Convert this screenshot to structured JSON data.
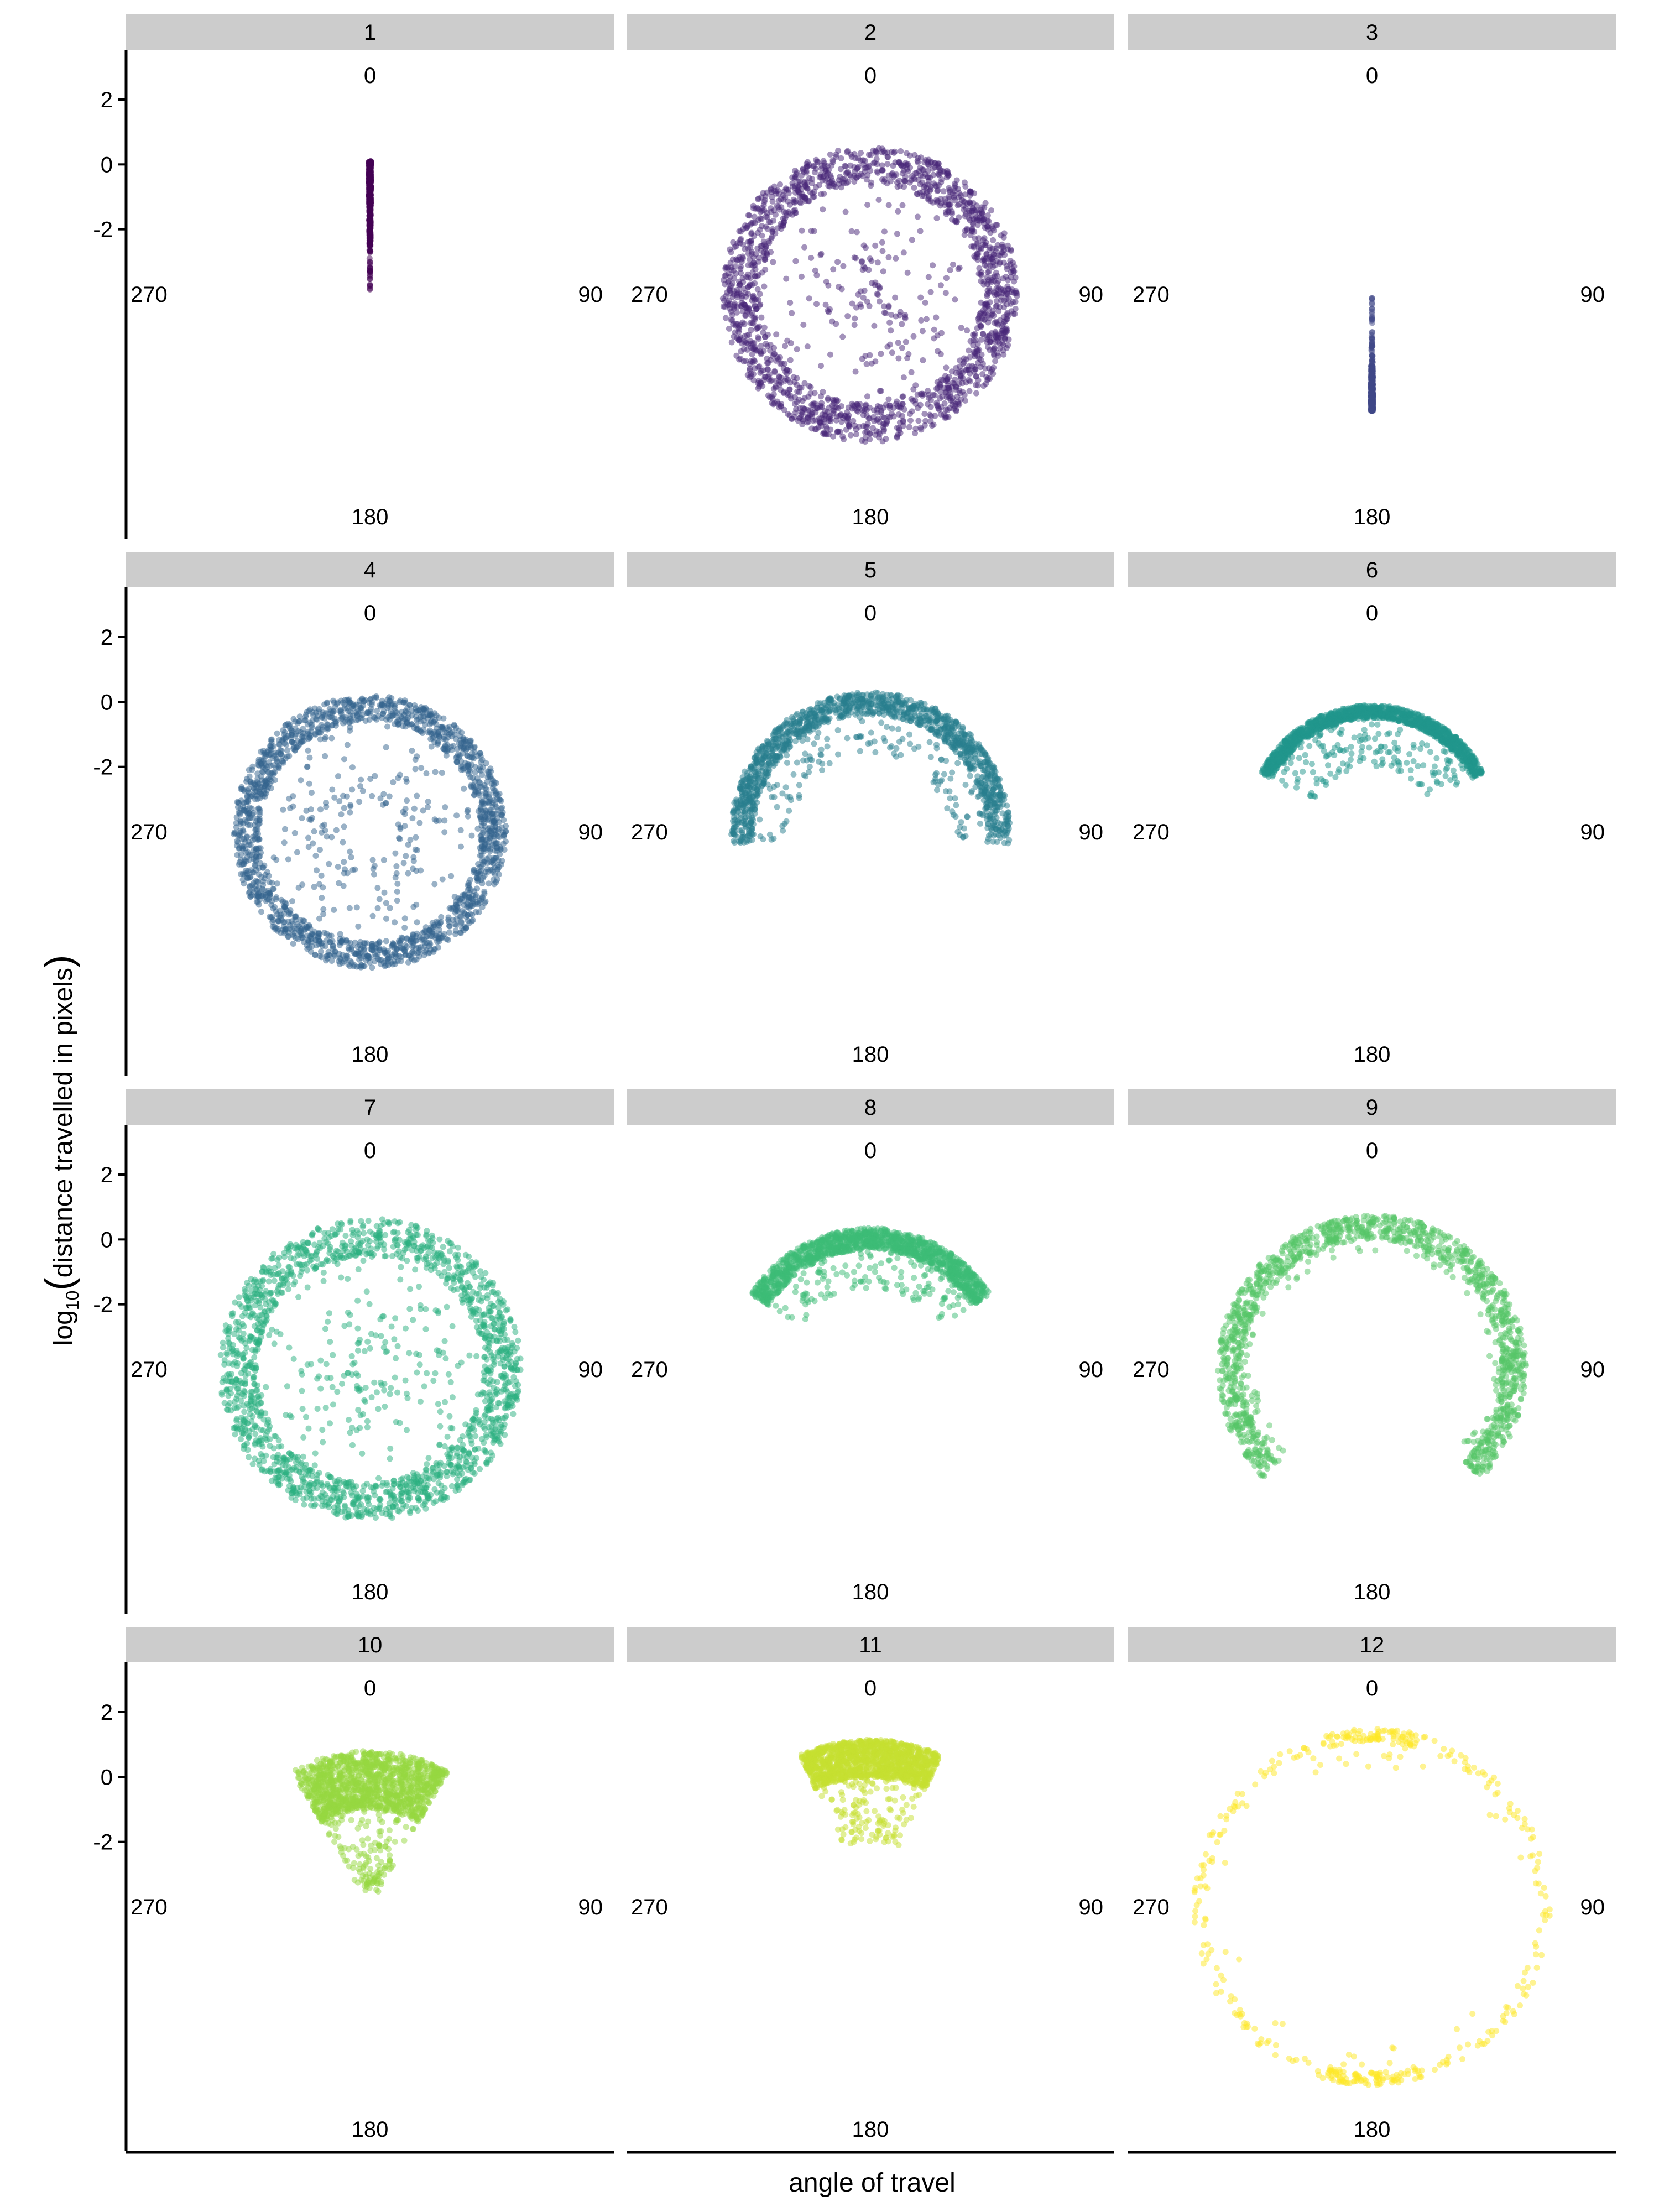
{
  "chart_data": {
    "type": "scatter",
    "coord": "polar",
    "xlabel": "angle of travel",
    "ylabel": {
      "prefix": "log",
      "subscript": "10",
      "open": "(",
      "inner": "distance travelled in pixels",
      "close": ")"
    },
    "angle_labels": [
      "0",
      "90",
      "180",
      "270"
    ],
    "y_ticks": [
      2,
      0,
      -2
    ],
    "r_range": [
      -4,
      3.5
    ],
    "grid": false,
    "legend": "none",
    "panels": [
      {
        "label": "1",
        "color": "#440154",
        "shape": "spoke",
        "center_angle": 0,
        "r_min": -3.9,
        "r_max": 0.1,
        "r_core_min": -2.5
      },
      {
        "label": "2",
        "color": "#482677",
        "shape": "ring",
        "r_min": -3.8,
        "r_max": 0.55,
        "r_core_min": -0.6
      },
      {
        "label": "3",
        "color": "#404788",
        "shape": "spoke",
        "center_angle": 180,
        "r_min": -3.9,
        "r_max": -0.4,
        "r_core_min": -1.8
      },
      {
        "label": "4",
        "color": "#33638D",
        "shape": "ring",
        "r_min": -3.2,
        "r_max": 0.2,
        "r_core_min": -0.6
      },
      {
        "label": "5",
        "color": "#287D8E",
        "shape": "arc",
        "center_angle": 0,
        "half_spread": 95,
        "r_min": -1.6,
        "r_max": 0.3,
        "r_core_min": -0.4
      },
      {
        "label": "6",
        "color": "#1F968B",
        "shape": "arc",
        "center_angle": 0,
        "half_spread": 62,
        "r_min": -2.0,
        "r_max": -0.1,
        "r_core_min": -0.5
      },
      {
        "label": "7",
        "color": "#29AF7F",
        "shape": "ring",
        "r_min": -3.6,
        "r_max": 0.65,
        "r_core_min": -0.5
      },
      {
        "label": "8",
        "color": "#3CBB75",
        "shape": "arc",
        "center_angle": 0,
        "half_spread": 58,
        "r_min": -1.5,
        "r_max": 0.35,
        "r_core_min": -0.3
      },
      {
        "label": "9",
        "color": "#55C667",
        "shape": "arc",
        "center_angle": 0,
        "half_spread": 135,
        "r_min": -0.4,
        "r_max": 0.75,
        "r_core_min": 0.0
      },
      {
        "label": "10",
        "color": "#95D840",
        "shape": "arc",
        "center_angle": 0,
        "half_spread": 30,
        "r_min": -3.5,
        "r_max": 0.8,
        "r_core_min": -1.0
      },
      {
        "label": "11",
        "color": "#C5DF30",
        "shape": "arc",
        "center_angle": 0,
        "half_spread": 25,
        "r_min": -2.0,
        "r_max": 1.15,
        "r_core_min": 0.0
      },
      {
        "label": "12",
        "color": "#FDE725",
        "shape": "sparse-ring",
        "r_min": 0.9,
        "r_max": 1.5,
        "r_core_min": 1.1
      }
    ]
  }
}
